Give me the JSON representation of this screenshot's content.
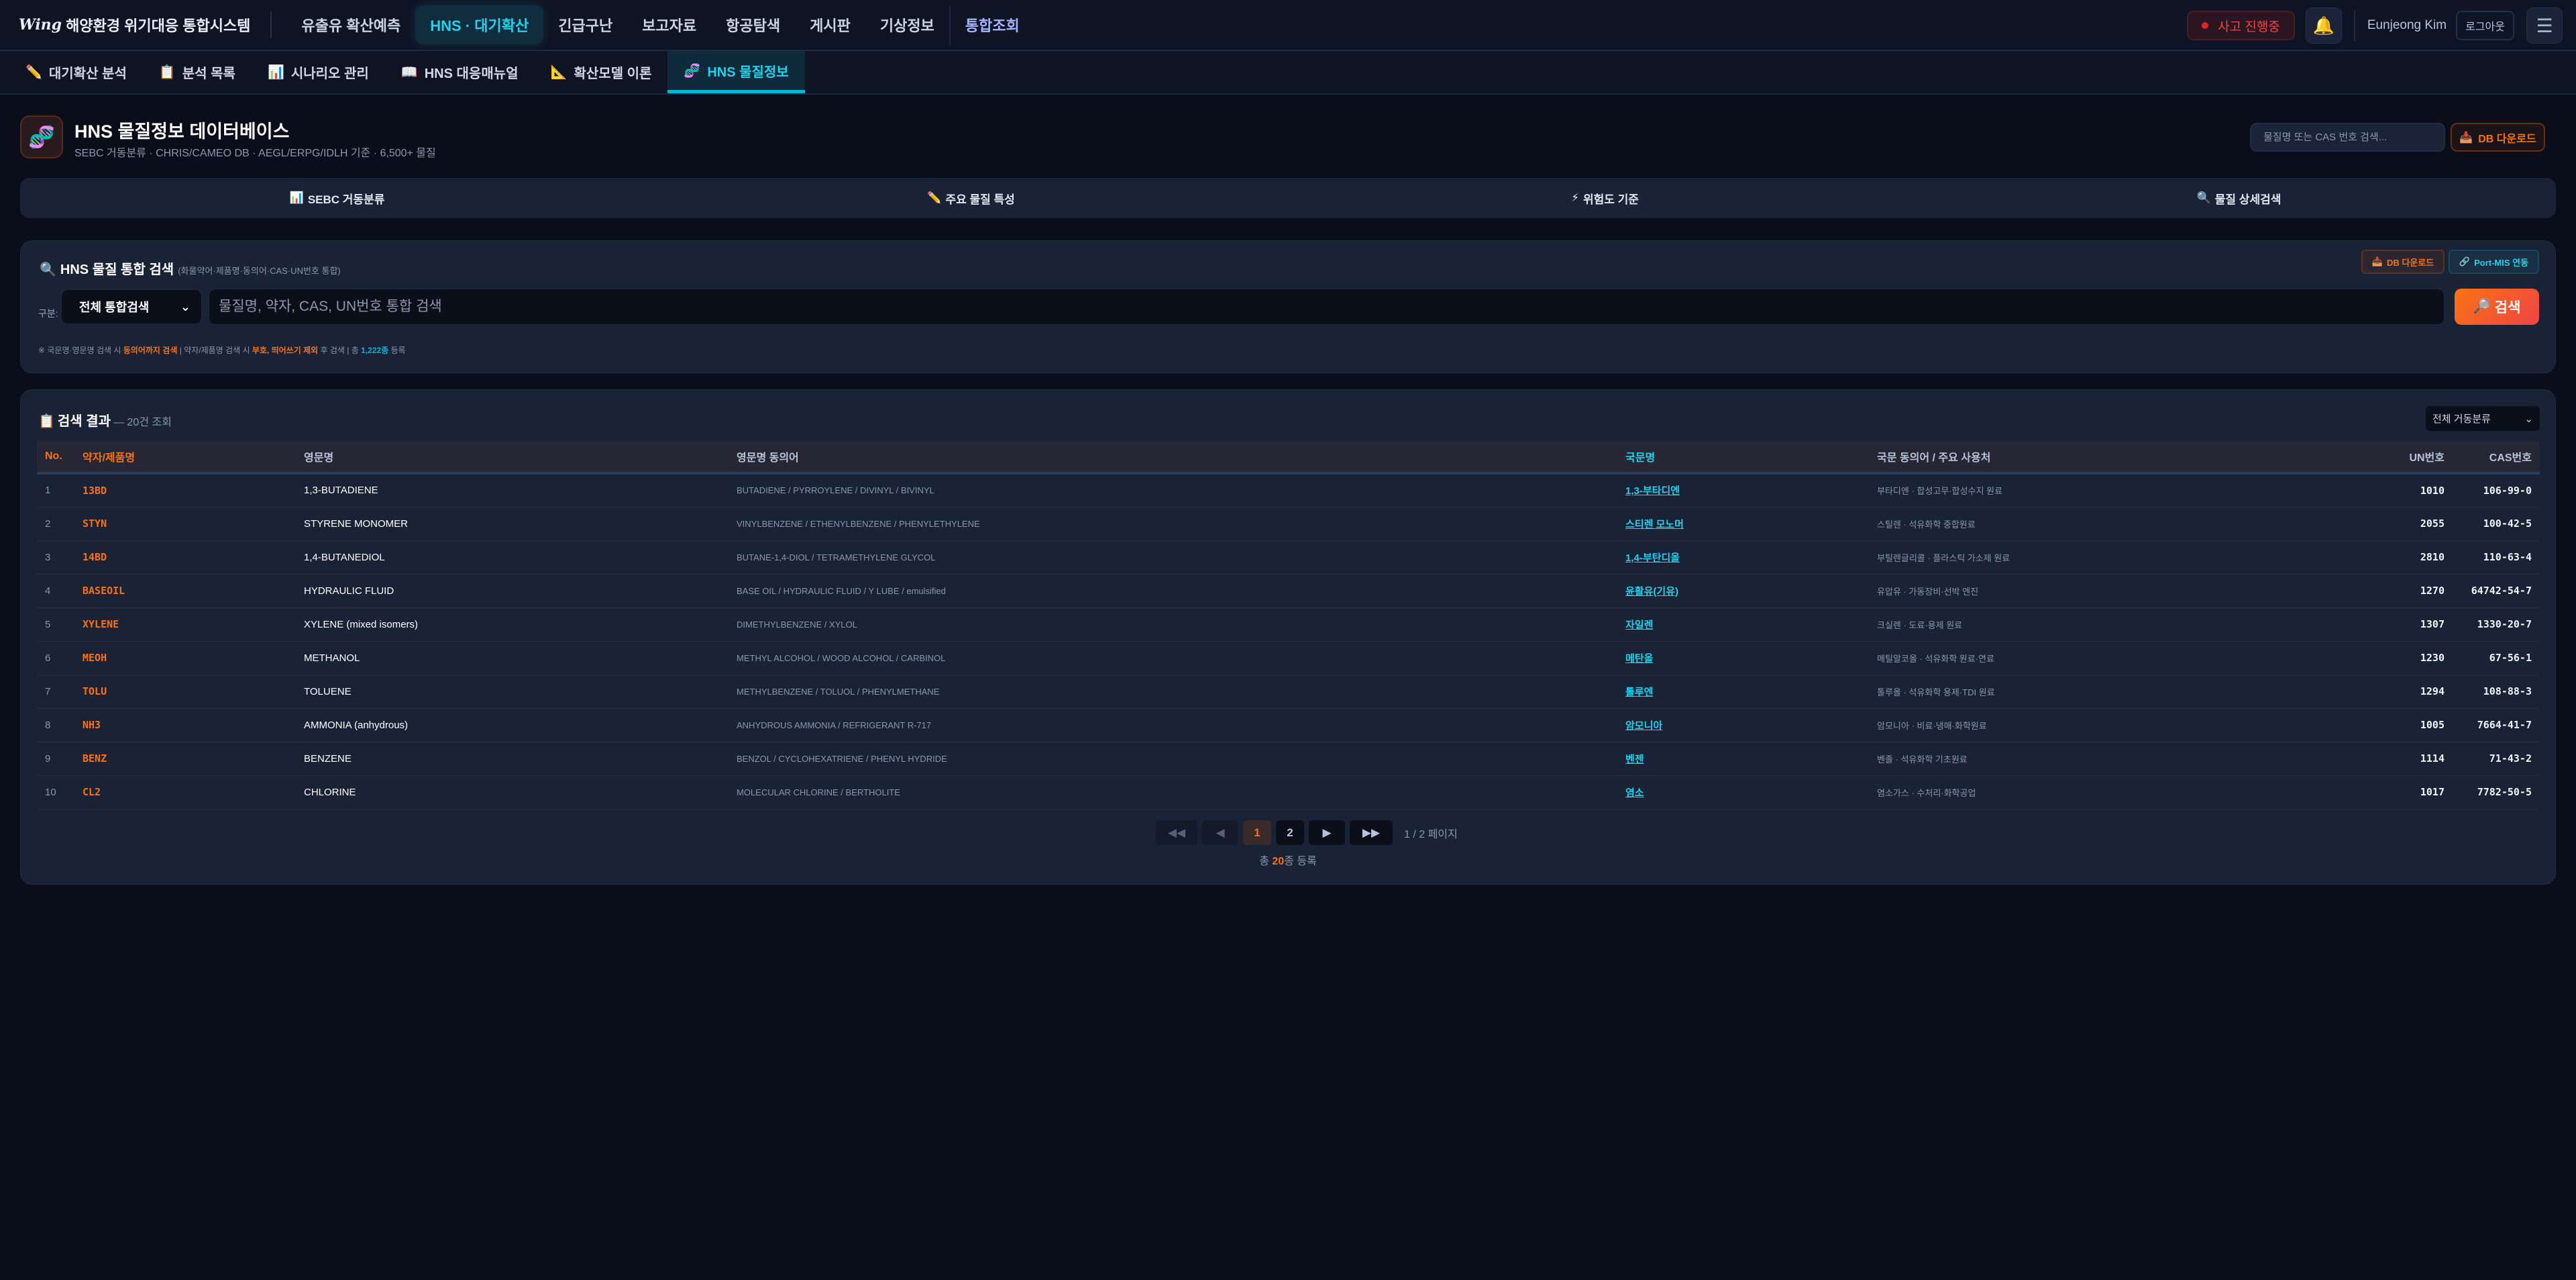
{
  "app": {
    "logo_mark": "Wing",
    "title": "해양환경 위기대응 통합시스템"
  },
  "nav": [
    {
      "label": "유출유 확산예측"
    },
    {
      "label": "HNS · 대기확산",
      "active": true
    },
    {
      "label": "긴급구난"
    },
    {
      "label": "보고자료"
    },
    {
      "label": "항공탐색"
    },
    {
      "label": "게시판"
    },
    {
      "label": "기상정보"
    },
    {
      "label": "통합조회",
      "purple": true
    }
  ],
  "topright": {
    "incident": "사고 진행중",
    "bell_icon": "bell-icon",
    "user": "Eunjeong Kim",
    "logout": "로그아웃",
    "menu_icon": "hamburger-icon"
  },
  "subnav": [
    {
      "icon": "✏️",
      "label": "대기확산 분석"
    },
    {
      "icon": "📋",
      "label": "분석 목록"
    },
    {
      "icon": "📊",
      "label": "시나리오 관리"
    },
    {
      "icon": "📖",
      "label": "HNS 대응매뉴얼"
    },
    {
      "icon": "📐",
      "label": "확산모델 이론"
    },
    {
      "icon": "🧬",
      "label": "HNS 물질정보",
      "active": true
    }
  ],
  "header": {
    "icon": "🧬",
    "title": "HNS 물질정보 데이터베이스",
    "subtitle": "SEBC 거동분류 · CHRIS/CAMEO DB · AEGL/ERPG/IDLH 기준 · 6,500+ 물질",
    "search_placeholder": "물질명 또는 CAS 번호 검색...",
    "download": "DB 다운로드",
    "download_icon": "📥"
  },
  "feature_tabs": [
    {
      "icon": "📊",
      "label": "SEBC 거동분류"
    },
    {
      "icon": "✏️",
      "label": "주요 물질 특성"
    },
    {
      "icon": "⚡",
      "label": "위험도 기준"
    },
    {
      "icon": "🔍",
      "label": "물질 상세검색"
    }
  ],
  "search": {
    "icon": "🔍",
    "title": "HNS 물질 통합 검색",
    "title_note": "(화물약어·제품명·동의어·CAS·UN번호 통합)",
    "db_download": "DB 다운로드",
    "portmis": "Port-MIS 연동",
    "label": "구분:",
    "category": "전체 통합검색",
    "placeholder": "물질명, 약자, CAS, UN번호 통합 검색",
    "button": "검색",
    "hint": {
      "p1": "※ 국문명·영문명 검색 시 ",
      "h1": "동의어까지 검색",
      "p2": " | 약자/제품명 검색 시 ",
      "h2": "부호, 띄어쓰기 제외",
      "p3": " 후 검색 | 총 ",
      "h3": "1,222종",
      "p4": " 등록"
    }
  },
  "results": {
    "icon": "📋",
    "title": "검색 결과",
    "count": "— 20건 조회",
    "filter": "전체 거동분류",
    "columns": [
      "No.",
      "약자/제품명",
      "영문명",
      "영문명 동의어",
      "국문명",
      "국문 동의어 / 주요 사용처",
      "UN번호",
      "CAS번호"
    ],
    "rows": [
      {
        "no": "1",
        "code": "13BD",
        "en": "1,3-BUTADIENE",
        "syn": "BUTADIENE / PYRROYLENE / DIVINYL / BIVINYL",
        "ko": "1,3-부타디엔",
        "kosyn": "부타디엔 · 합성고무·합성수지 원료",
        "un": "1010",
        "cas": "106-99-0"
      },
      {
        "no": "2",
        "code": "STYN",
        "en": "STYRENE MONOMER",
        "syn": "VINYLBENZENE / ETHENYLBENZENE / PHENYLETHYLENE",
        "ko": "스티렌 모노머",
        "kosyn": "스틸렌 · 석유화학 중합원료",
        "un": "2055",
        "cas": "100-42-5"
      },
      {
        "no": "3",
        "code": "14BD",
        "en": "1,4-BUTANEDIOL",
        "syn": "BUTANE-1,4-DIOL / TETRAMETHYLENE GLYCOL",
        "ko": "1,4-부탄디올",
        "kosyn": "부틸렌글리콜 · 플라스틱 가소제 원료",
        "un": "2810",
        "cas": "110-63-4"
      },
      {
        "no": "4",
        "code": "BASEOIL",
        "en": "HYDRAULIC FLUID",
        "syn": "BASE OIL / HYDRAULIC FLUID / Y LUBE / emulsified",
        "ko": "윤활유(기유)",
        "kosyn": "유압유 · 가동장비·선박 엔진",
        "un": "1270",
        "cas": "64742-54-7"
      },
      {
        "no": "5",
        "code": "XYLENE",
        "en": "XYLENE (mixed isomers)",
        "syn": "DIMETHYLBENZENE / XYLOL",
        "ko": "자일렌",
        "kosyn": "크실렌 · 도료·용제 원료",
        "un": "1307",
        "cas": "1330-20-7"
      },
      {
        "no": "6",
        "code": "MEOH",
        "en": "METHANOL",
        "syn": "METHYL ALCOHOL / WOOD ALCOHOL / CARBINOL",
        "ko": "메탄올",
        "kosyn": "메틸알코올 · 석유화학 원료·연료",
        "un": "1230",
        "cas": "67-56-1"
      },
      {
        "no": "7",
        "code": "TOLU",
        "en": "TOLUENE",
        "syn": "METHYLBENZENE / TOLUOL / PHENYLMETHANE",
        "ko": "톨루엔",
        "kosyn": "톨루올 · 석유화학 용제·TDI 원료",
        "un": "1294",
        "cas": "108-88-3"
      },
      {
        "no": "8",
        "code": "NH3",
        "en": "AMMONIA (anhydrous)",
        "syn": "ANHYDROUS AMMONIA / REFRIGERANT R-717",
        "ko": "암모니아",
        "kosyn": "암모니아 · 비료·냉매·화학원료",
        "un": "1005",
        "cas": "7664-41-7"
      },
      {
        "no": "9",
        "code": "BENZ",
        "en": "BENZENE",
        "syn": "BENZOL / CYCLOHEXATRIENE / PHENYL HYDRIDE",
        "ko": "벤젠",
        "kosyn": "벤졸 · 석유화학 기초원료",
        "un": "1114",
        "cas": "71-43-2"
      },
      {
        "no": "10",
        "code": "CL2",
        "en": "CHLORINE",
        "syn": "MOLECULAR CHLORINE / BERTHOLITE",
        "ko": "염소",
        "kosyn": "염소가스 · 수처리·화학공업",
        "un": "1017",
        "cas": "7782-50-5"
      }
    ]
  },
  "pagination": {
    "first": "◀◀",
    "prev": "◀",
    "pages": [
      "1",
      "2"
    ],
    "current": "1",
    "next": "▶",
    "last": "▶▶",
    "info": "1 / 2 페이지",
    "total_pre": "총 ",
    "total_num": "20",
    "total_post": "종 등록"
  },
  "colors": {
    "accent_cyan": "#22d3ee",
    "accent_orange": "#f97316",
    "danger": "#ef4444",
    "bg": "#0a0e1a",
    "panel": "#1a2236"
  }
}
